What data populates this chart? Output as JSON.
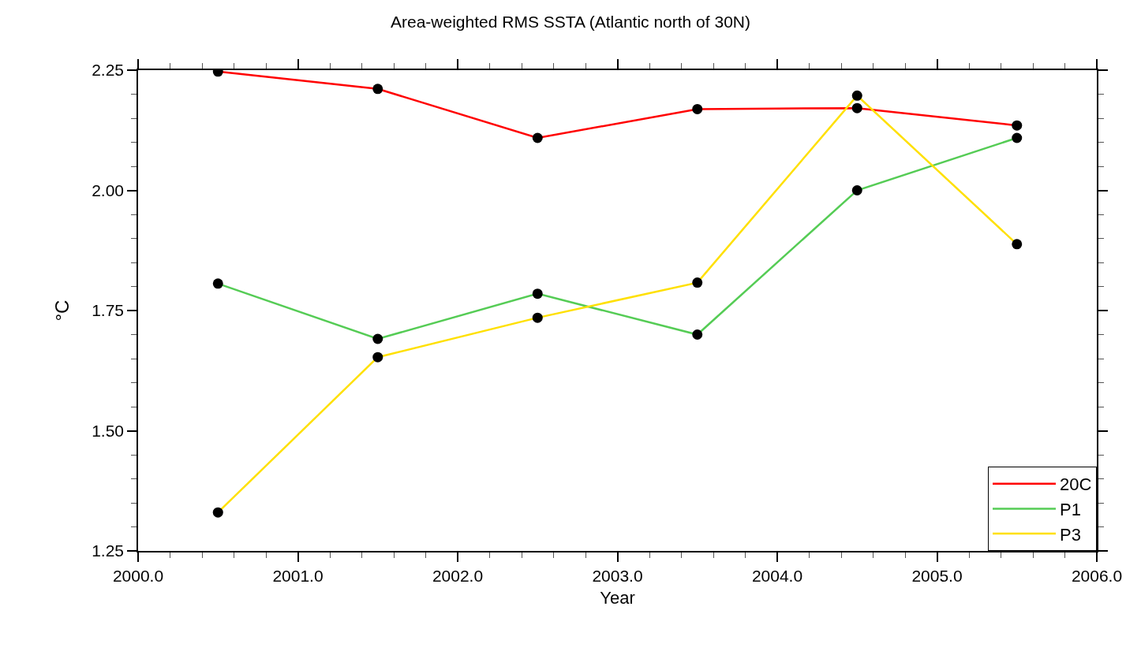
{
  "chart_data": {
    "type": "line",
    "title": "Area-weighted RMS SSTA (Atlantic north of 30N)",
    "xlabel": "Year",
    "ylabel": "°C",
    "x": [
      2000.5,
      2001.5,
      2002.5,
      2003.5,
      2004.5,
      2005.5
    ],
    "series": [
      {
        "name": "20C",
        "color": "#ff0000",
        "values": [
          2.247,
          2.211,
          2.109,
          2.169,
          2.171,
          2.135
        ]
      },
      {
        "name": "P1",
        "color": "#55cc55",
        "values": [
          1.806,
          1.691,
          1.785,
          1.7,
          2.0,
          2.109
        ]
      },
      {
        "name": "P3",
        "color": "#ffe000",
        "values": [
          1.33,
          1.653,
          1.735,
          1.808,
          2.197,
          1.888
        ]
      }
    ],
    "xlim": [
      2000,
      2006
    ],
    "xticks": [
      {
        "value": 2000,
        "label": "2000.0"
      },
      {
        "value": 2000.2,
        "label": null
      },
      {
        "value": 2000.4,
        "label": null
      },
      {
        "value": 2000.6,
        "label": null
      },
      {
        "value": 2000.8,
        "label": null
      },
      {
        "value": 2001,
        "label": "2001.0"
      },
      {
        "value": 2001.2,
        "label": null
      },
      {
        "value": 2001.4,
        "label": null
      },
      {
        "value": 2001.6,
        "label": null
      },
      {
        "value": 2001.8,
        "label": null
      },
      {
        "value": 2002,
        "label": "2002.0"
      },
      {
        "value": 2002.2,
        "label": null
      },
      {
        "value": 2002.4,
        "label": null
      },
      {
        "value": 2002.6,
        "label": null
      },
      {
        "value": 2002.8,
        "label": null
      },
      {
        "value": 2003,
        "label": "2003.0"
      },
      {
        "value": 2003.2,
        "label": null
      },
      {
        "value": 2003.4,
        "label": null
      },
      {
        "value": 2003.6,
        "label": null
      },
      {
        "value": 2003.8,
        "label": null
      },
      {
        "value": 2004,
        "label": "2004.0"
      },
      {
        "value": 2004.2,
        "label": null
      },
      {
        "value": 2004.4,
        "label": null
      },
      {
        "value": 2004.6,
        "label": null
      },
      {
        "value": 2004.8,
        "label": null
      },
      {
        "value": 2005,
        "label": "2005.0"
      },
      {
        "value": 2005.2,
        "label": null
      },
      {
        "value": 2005.4,
        "label": null
      },
      {
        "value": 2005.6,
        "label": null
      },
      {
        "value": 2005.8,
        "label": null
      },
      {
        "value": 2006,
        "label": "2006.0"
      }
    ],
    "ylim": [
      1.25,
      2.25
    ],
    "yticks": [
      {
        "value": 1.25,
        "label": "1.25"
      },
      {
        "value": 1.3,
        "label": null
      },
      {
        "value": 1.35,
        "label": null
      },
      {
        "value": 1.4,
        "label": null
      },
      {
        "value": 1.45,
        "label": null
      },
      {
        "value": 1.5,
        "label": "1.50"
      },
      {
        "value": 1.55,
        "label": null
      },
      {
        "value": 1.6,
        "label": null
      },
      {
        "value": 1.65,
        "label": null
      },
      {
        "value": 1.7,
        "label": null
      },
      {
        "value": 1.75,
        "label": "1.75"
      },
      {
        "value": 1.8,
        "label": null
      },
      {
        "value": 1.85,
        "label": null
      },
      {
        "value": 1.9,
        "label": null
      },
      {
        "value": 1.95,
        "label": null
      },
      {
        "value": 2.0,
        "label": "2.00"
      },
      {
        "value": 2.05,
        "label": null
      },
      {
        "value": 2.1,
        "label": null
      },
      {
        "value": 2.15,
        "label": null
      },
      {
        "value": 2.2,
        "label": null
      },
      {
        "value": 2.25,
        "label": "2.25"
      }
    ],
    "grid": false,
    "legend": "bottom right",
    "marker": "circle",
    "line_style": "solid"
  }
}
